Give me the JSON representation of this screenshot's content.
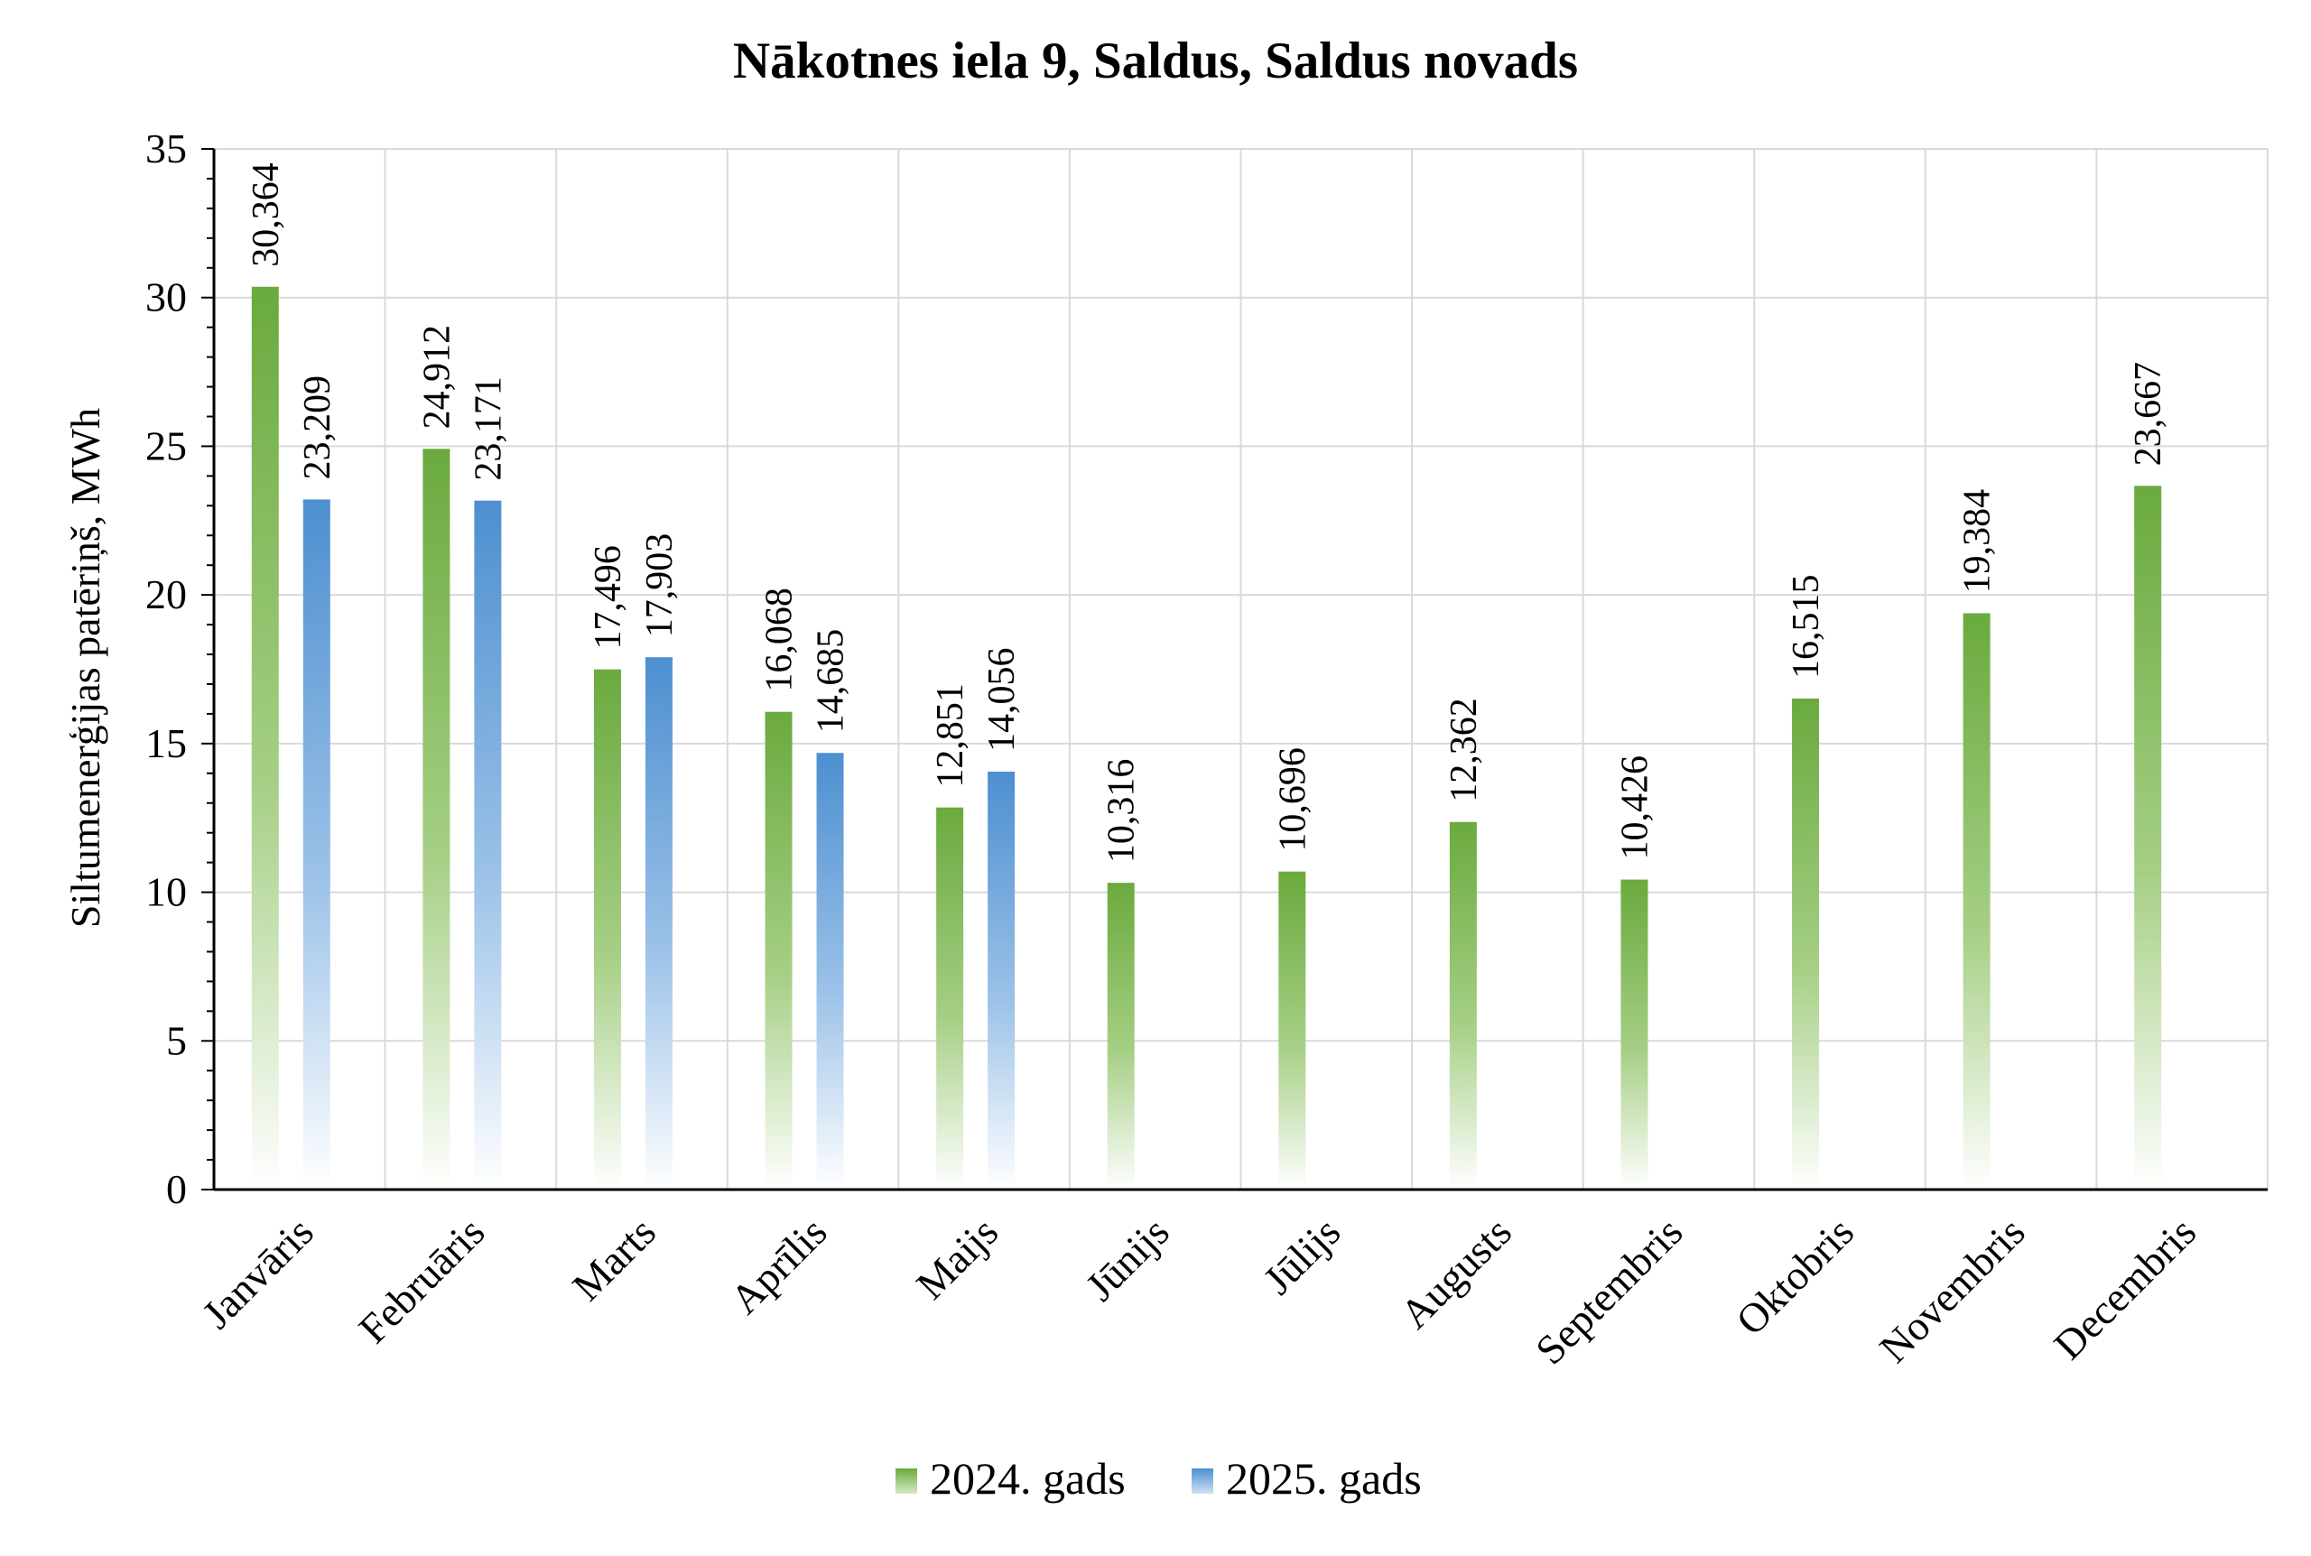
{
  "chart_data": {
    "type": "bar",
    "title": "Nākotnes iela 9, Saldus, Saldus novads",
    "ylabel": "Siltumenerģijas patēriņš, MWh",
    "xlabel": "",
    "ylim": [
      0,
      35
    ],
    "yticks": [
      0,
      5,
      10,
      15,
      20,
      25,
      30,
      35
    ],
    "grid": true,
    "legend_position": "bottom",
    "categories": [
      "Janvāris",
      "Februāris",
      "Marts",
      "Aprīlis",
      "Maijs",
      "Jūnijs",
      "Jūlijs",
      "Augusts",
      "Septembris",
      "Oktobris",
      "Novembris",
      "Decembris"
    ],
    "series": [
      {
        "name": "2024. gads",
        "color": "#70ad47",
        "values": [
          30.364,
          24.912,
          17.496,
          16.068,
          12.851,
          10.316,
          10.696,
          12.362,
          10.426,
          16.515,
          19.384,
          23.667
        ],
        "labels": [
          "30,364",
          "24,912",
          "17,496",
          "16,068",
          "12,851",
          "10,316",
          "10,696",
          "12,362",
          "10,426",
          "16,515",
          "19,384",
          "23,667"
        ]
      },
      {
        "name": "2025. gads",
        "color": "#5b9bd5",
        "values": [
          23.209,
          23.171,
          17.903,
          14.685,
          14.056,
          null,
          null,
          null,
          null,
          null,
          null,
          null
        ],
        "labels": [
          "23,209",
          "23,171",
          "17,903",
          "14,685",
          "14,056",
          "",
          "",
          "",
          "",
          "",
          "",
          ""
        ]
      }
    ]
  }
}
